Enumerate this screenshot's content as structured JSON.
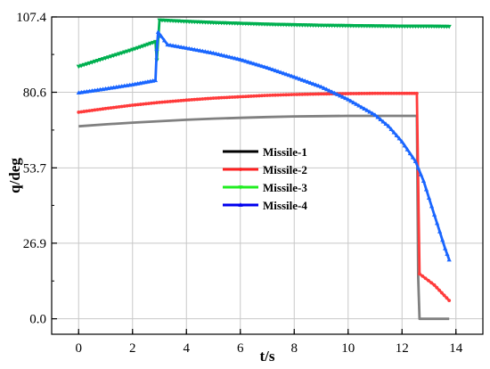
{
  "chart_data": {
    "type": "line",
    "title": "",
    "xlabel": "t/s",
    "ylabel": "q/deg",
    "xlim": [
      -1,
      15
    ],
    "ylim": [
      -5.5,
      107.4
    ],
    "xticks": [
      0,
      2,
      4,
      6,
      8,
      10,
      12,
      14
    ],
    "yticks": [
      0.0,
      26.9,
      53.7,
      80.6,
      107.4
    ],
    "xtick_labels": [
      "0",
      "2",
      "4",
      "6",
      "8",
      "10",
      "12",
      "14"
    ],
    "ytick_labels": [
      "0.0",
      "26.9",
      "53.7",
      "80.6",
      "107.4"
    ],
    "grid": true,
    "legend_position": "center",
    "series": [
      {
        "name": "Missile-1",
        "color": "#808080",
        "legend_color": "#000000",
        "marker": "none",
        "points": [
          [
            0,
            68.5
          ],
          [
            1,
            69.2
          ],
          [
            2,
            69.8
          ],
          [
            3,
            70.3
          ],
          [
            4,
            70.8
          ],
          [
            5,
            71.2
          ],
          [
            6,
            71.5
          ],
          [
            7,
            71.8
          ],
          [
            8,
            72.0
          ],
          [
            9,
            72.1
          ],
          [
            10,
            72.2
          ],
          [
            11,
            72.2
          ],
          [
            12,
            72.2
          ],
          [
            12.55,
            72.2
          ],
          [
            12.6,
            15.0
          ],
          [
            12.65,
            0.0
          ],
          [
            13.75,
            0.0
          ]
        ]
      },
      {
        "name": "Missile-2",
        "color": "#ff3b3b",
        "legend_color": "#ff2020",
        "marker": "dot",
        "points": [
          [
            0,
            73.5
          ],
          [
            1,
            74.8
          ],
          [
            2,
            76.0
          ],
          [
            3,
            77.0
          ],
          [
            4,
            77.8
          ],
          [
            5,
            78.5
          ],
          [
            6,
            79.0
          ],
          [
            7,
            79.5
          ],
          [
            8,
            79.8
          ],
          [
            9,
            80.0
          ],
          [
            10,
            80.1
          ],
          [
            11,
            80.2
          ],
          [
            12,
            80.2
          ],
          [
            12.55,
            80.2
          ],
          [
            12.65,
            16.0
          ],
          [
            13.2,
            12.0
          ],
          [
            13.75,
            6.5
          ]
        ]
      },
      {
        "name": "Missile-3",
        "color": "#00b050",
        "legend_color": "#22ee22",
        "marker": "triangle-down",
        "points": [
          [
            0,
            89.8
          ],
          [
            1,
            92.8
          ],
          [
            2,
            95.8
          ],
          [
            2.85,
            98.6
          ],
          [
            2.9,
            92.0
          ],
          [
            3.0,
            106.3
          ],
          [
            4,
            105.8
          ],
          [
            5,
            105.4
          ],
          [
            6,
            105.1
          ],
          [
            7,
            104.8
          ],
          [
            8,
            104.6
          ],
          [
            9,
            104.4
          ],
          [
            10,
            104.3
          ],
          [
            11,
            104.2
          ],
          [
            12,
            104.1
          ],
          [
            13,
            104.1
          ],
          [
            13.75,
            104.0
          ]
        ]
      },
      {
        "name": "Missile-4",
        "color": "#1a66ff",
        "legend_color": "#0000ee",
        "marker": "triangle-up",
        "points": [
          [
            0,
            80.4
          ],
          [
            1,
            81.8
          ],
          [
            2,
            83.3
          ],
          [
            2.85,
            84.8
          ],
          [
            2.9,
            96.0
          ],
          [
            2.95,
            102.0
          ],
          [
            3.3,
            97.5
          ],
          [
            4,
            96.3
          ],
          [
            5,
            94.5
          ],
          [
            6,
            92.2
          ],
          [
            7,
            89.3
          ],
          [
            8,
            86.0
          ],
          [
            9,
            82.5
          ],
          [
            10,
            78.0
          ],
          [
            11,
            72.5
          ],
          [
            11.5,
            68.5
          ],
          [
            12,
            63.0
          ],
          [
            12.5,
            56.0
          ],
          [
            12.8,
            49.0
          ],
          [
            13.0,
            43.0
          ],
          [
            13.2,
            37.0
          ],
          [
            13.4,
            31.0
          ],
          [
            13.6,
            25.0
          ],
          [
            13.75,
            21.0
          ]
        ]
      }
    ]
  }
}
